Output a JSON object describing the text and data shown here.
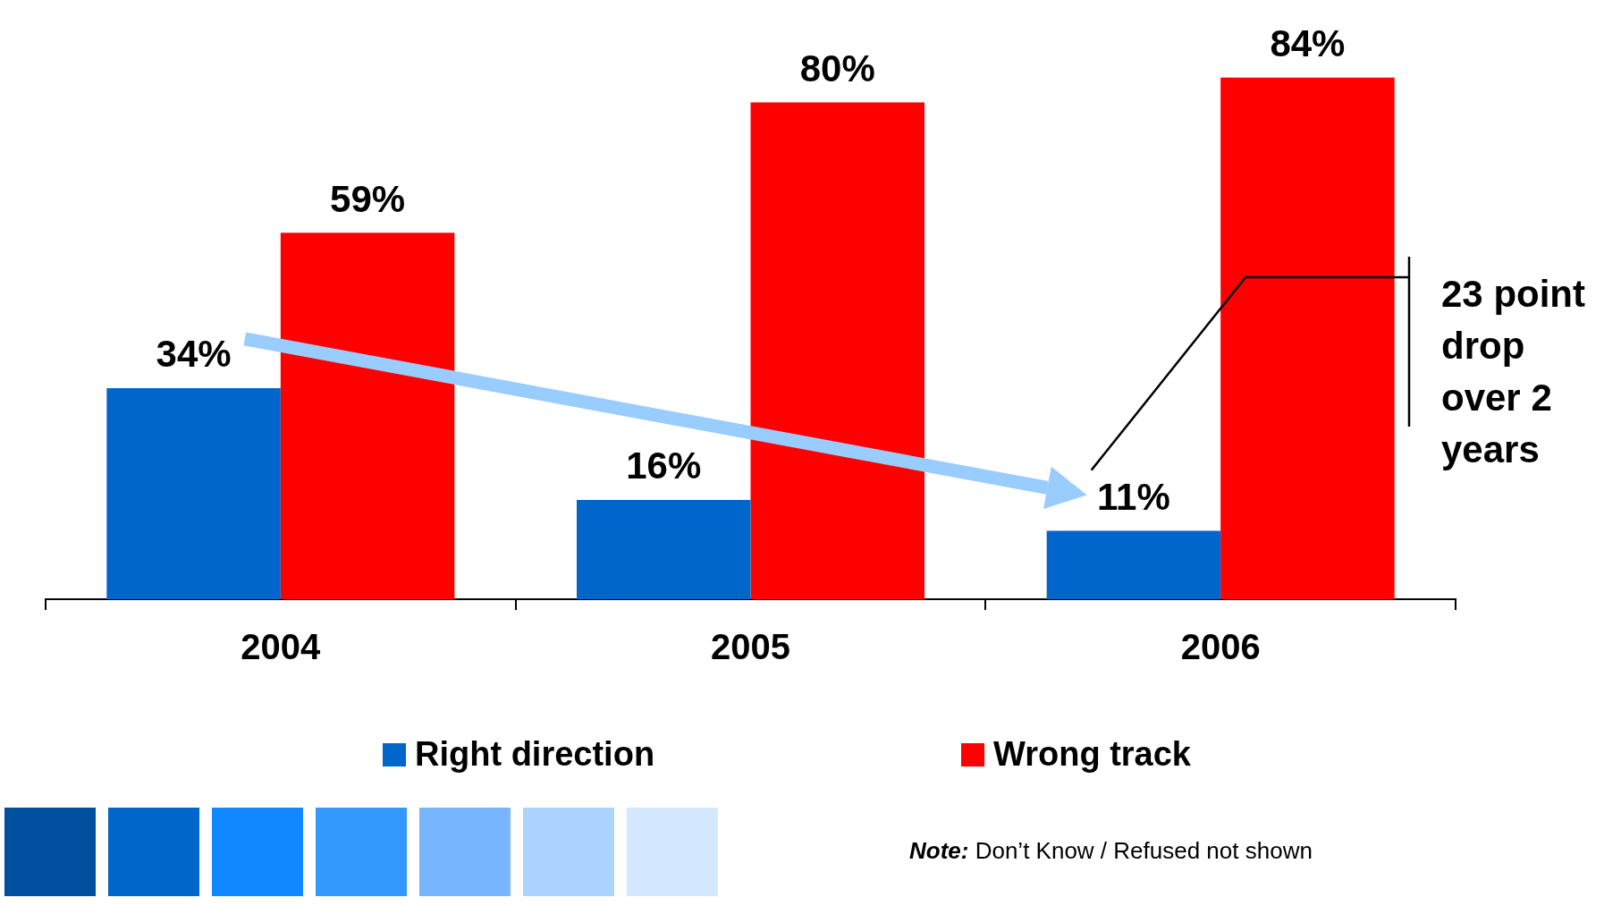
{
  "chart_data": {
    "type": "bar",
    "categories": [
      "2004",
      "2005",
      "2006"
    ],
    "series": [
      {
        "name": "Right direction",
        "color": "#0066cc",
        "values": [
          34,
          16,
          11
        ],
        "value_labels": [
          "34%",
          "16%",
          "11%"
        ]
      },
      {
        "name": "Wrong track",
        "color": "#ff0000",
        "values": [
          59,
          80,
          84
        ],
        "value_labels": [
          "59%",
          "80%",
          "84%"
        ]
      }
    ],
    "legend": "bottom",
    "grid": false,
    "tick_labels": "x",
    "annotations": [
      "23 point drop over 2 years",
      "Note: Don’t Know / Refused not shown"
    ]
  }
}
